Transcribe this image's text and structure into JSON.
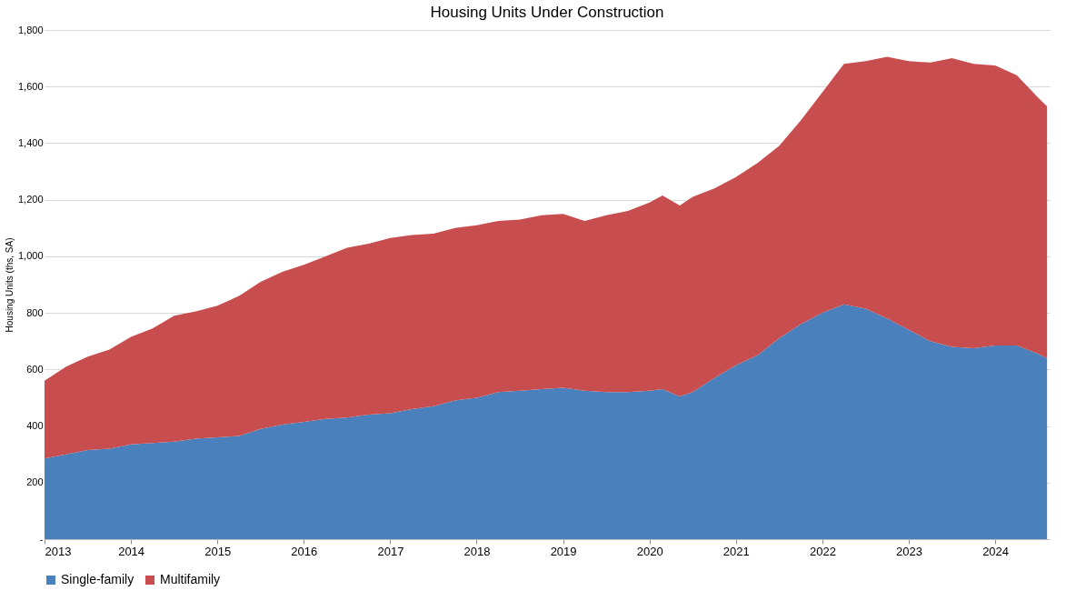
{
  "chart_data": {
    "type": "area",
    "title": "Housing Units Under Construction",
    "ylabel": "Housing Units (ths, SA)",
    "stacked": true,
    "grid": "y",
    "legend": "bottom",
    "x": [
      2013.0,
      2013.25,
      2013.5,
      2013.75,
      2014.0,
      2014.25,
      2014.5,
      2014.75,
      2015.0,
      2015.25,
      2015.5,
      2015.75,
      2016.0,
      2016.25,
      2016.5,
      2016.75,
      2017.0,
      2017.25,
      2017.5,
      2017.75,
      2018.0,
      2018.25,
      2018.5,
      2018.75,
      2019.0,
      2019.25,
      2019.5,
      2019.75,
      2020.0,
      2020.15,
      2020.35,
      2020.5,
      2020.75,
      2021.0,
      2021.25,
      2021.5,
      2021.75,
      2022.0,
      2022.25,
      2022.5,
      2022.75,
      2023.0,
      2023.25,
      2023.5,
      2023.75,
      2024.0,
      2024.25,
      2024.5,
      2024.6
    ],
    "xlim": [
      2013,
      2024.63
    ],
    "xticks": [
      2013,
      2014,
      2015,
      2016,
      2017,
      2018,
      2019,
      2020,
      2021,
      2022,
      2023,
      2024
    ],
    "ylim": [
      0,
      1800
    ],
    "yticks": [
      {
        "value": 0,
        "label": "-"
      },
      200,
      400,
      600,
      800,
      {
        "value": 1000,
        "label": "1,000"
      },
      {
        "value": 1200,
        "label": "1,200"
      },
      {
        "value": 1400,
        "label": "1,400"
      },
      {
        "value": 1600,
        "label": "1,600"
      },
      {
        "value": 1800,
        "label": "1,800"
      }
    ],
    "series": [
      {
        "name": "Single-family",
        "color": "#4a80bc",
        "values": [
          285,
          300,
          315,
          320,
          335,
          340,
          345,
          355,
          360,
          365,
          390,
          405,
          415,
          425,
          430,
          440,
          445,
          460,
          470,
          490,
          500,
          520,
          525,
          530,
          535,
          525,
          520,
          520,
          525,
          530,
          505,
          520,
          570,
          615,
          650,
          710,
          760,
          800,
          830,
          815,
          780,
          740,
          700,
          680,
          675,
          685,
          685,
          655,
          640
        ]
      },
      {
        "name": "Multifamily",
        "color": "#c84d4f",
        "values": [
          275,
          310,
          330,
          350,
          380,
          405,
          445,
          450,
          465,
          495,
          520,
          540,
          555,
          575,
          600,
          605,
          620,
          615,
          610,
          610,
          610,
          605,
          605,
          615,
          615,
          600,
          625,
          640,
          665,
          685,
          675,
          690,
          670,
          665,
          680,
          680,
          720,
          780,
          850,
          875,
          925,
          950,
          985,
          1020,
          1005,
          990,
          955,
          905,
          890
        ]
      }
    ]
  }
}
